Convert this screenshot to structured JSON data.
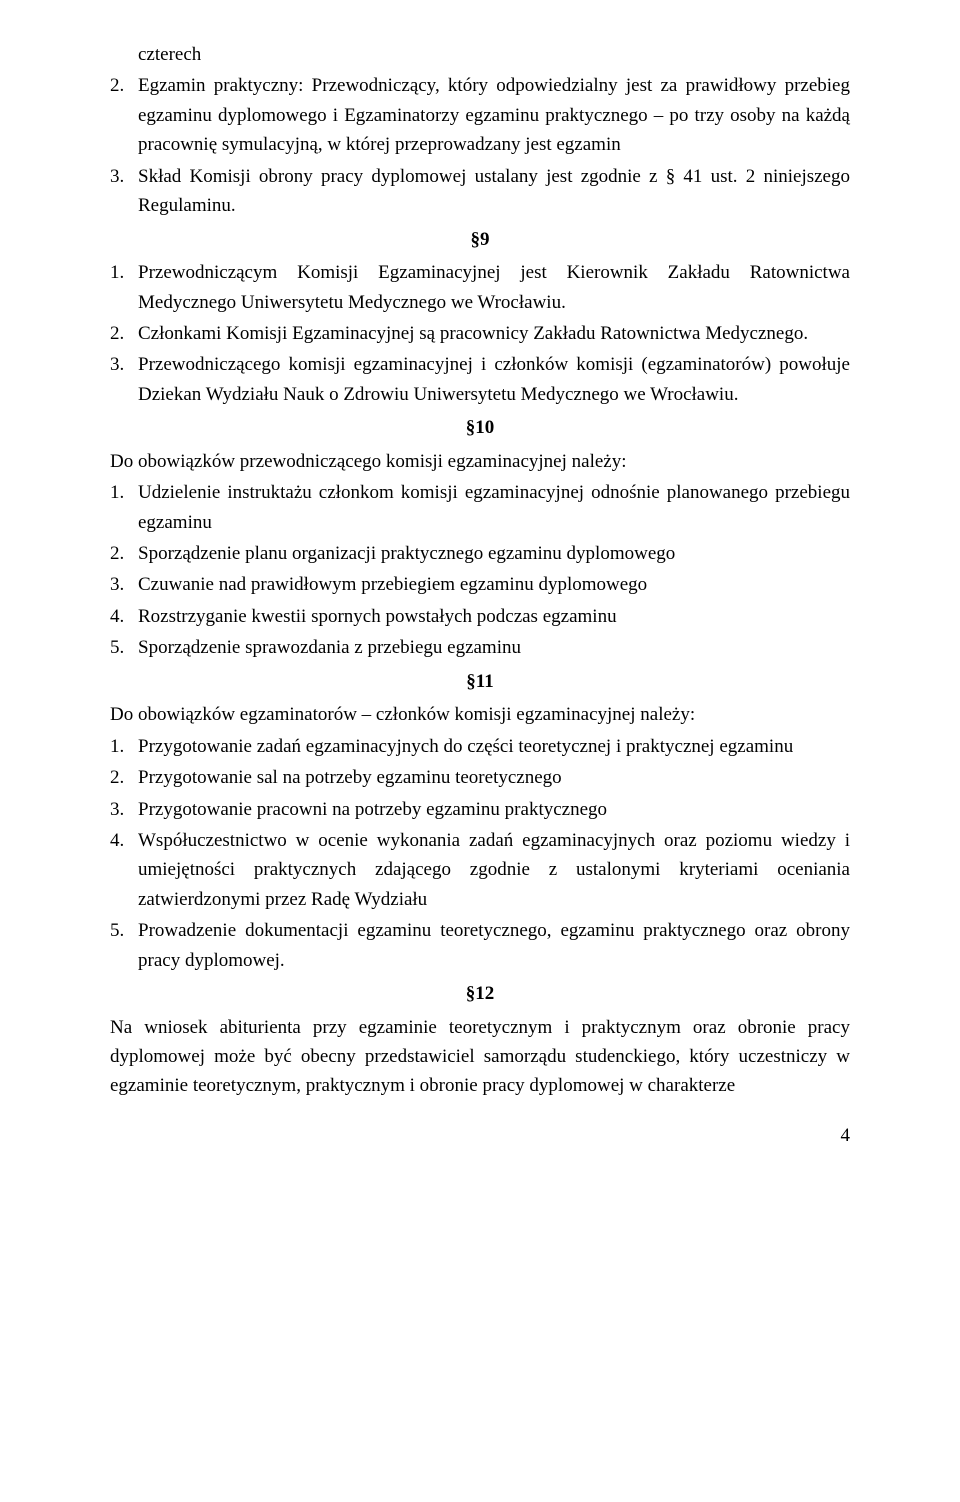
{
  "line_czterech": "czterech",
  "p8_2": "Egzamin praktyczny: Przewodniczący, który odpowiedzialny jest za prawidłowy przebieg egzaminu dyplomowego i Egzaminatorzy egzaminu praktycznego – po trzy osoby na każdą pracownię symulacyjną, w której przeprowadzany jest egzamin",
  "p8_3": "Skład Komisji obrony pracy dyplomowej ustalany jest zgodnie z § 41 ust. 2 niniejszego Regulaminu.",
  "sec9": "§9",
  "p9_1": "Przewodniczącym Komisji Egzaminacyjnej jest Kierownik Zakładu Ratownictwa Medycznego Uniwersytetu Medycznego we Wrocławiu.",
  "p9_2": "Członkami Komisji Egzaminacyjnej są pracownicy Zakładu Ratownictwa Medycznego.",
  "p9_3": "Przewodniczącego komisji egzaminacyjnej i członków komisji (egzaminatorów) powołuje Dziekan Wydziału Nauk o Zdrowiu Uniwersytetu Medycznego we Wrocławiu.",
  "sec10": "§10",
  "p10_intro": "Do obowiązków przewodniczącego komisji egzaminacyjnej należy:",
  "p10_1": "Udzielenie instruktażu członkom komisji egzaminacyjnej odnośnie planowanego przebiegu egzaminu",
  "p10_2": "Sporządzenie planu organizacji praktycznego egzaminu dyplomowego",
  "p10_3": "Czuwanie nad prawidłowym przebiegiem egzaminu dyplomowego",
  "p10_4": "Rozstrzyganie kwestii spornych powstałych podczas egzaminu",
  "p10_5": "Sporządzenie sprawozdania z przebiegu egzaminu",
  "sec11": "§11",
  "p11_intro": "Do obowiązków egzaminatorów – członków komisji egzaminacyjnej należy:",
  "p11_1": "Przygotowanie zadań egzaminacyjnych do części teoretycznej i praktycznej egzaminu",
  "p11_2": "Przygotowanie sal na potrzeby egzaminu teoretycznego",
  "p11_3": "Przygotowanie pracowni na potrzeby egzaminu praktycznego",
  "p11_4": "Współuczestnictwo w ocenie wykonania zadań egzaminacyjnych oraz poziomu wiedzy i umiejętności praktycznych zdającego zgodnie z ustalonymi kryteriami oceniania zatwierdzonymi przez Radę Wydziału",
  "p11_5": "Prowadzenie dokumentacji egzaminu teoretycznego, egzaminu praktycznego oraz obrony pracy dyplomowej.",
  "sec12": "§12",
  "p12_body": "Na wniosek abiturienta przy egzaminie teoretycznym i praktycznym oraz obronie pracy dyplomowej może być obecny przedstawiciel samorządu studenckiego, który uczestniczy w egzaminie teoretycznym, praktycznym i obronie pracy dyplomowej w charakterze",
  "n2": "2.",
  "n3": "3.",
  "n1": "1.",
  "n4": "4.",
  "n5": "5.",
  "pagenum": "4"
}
